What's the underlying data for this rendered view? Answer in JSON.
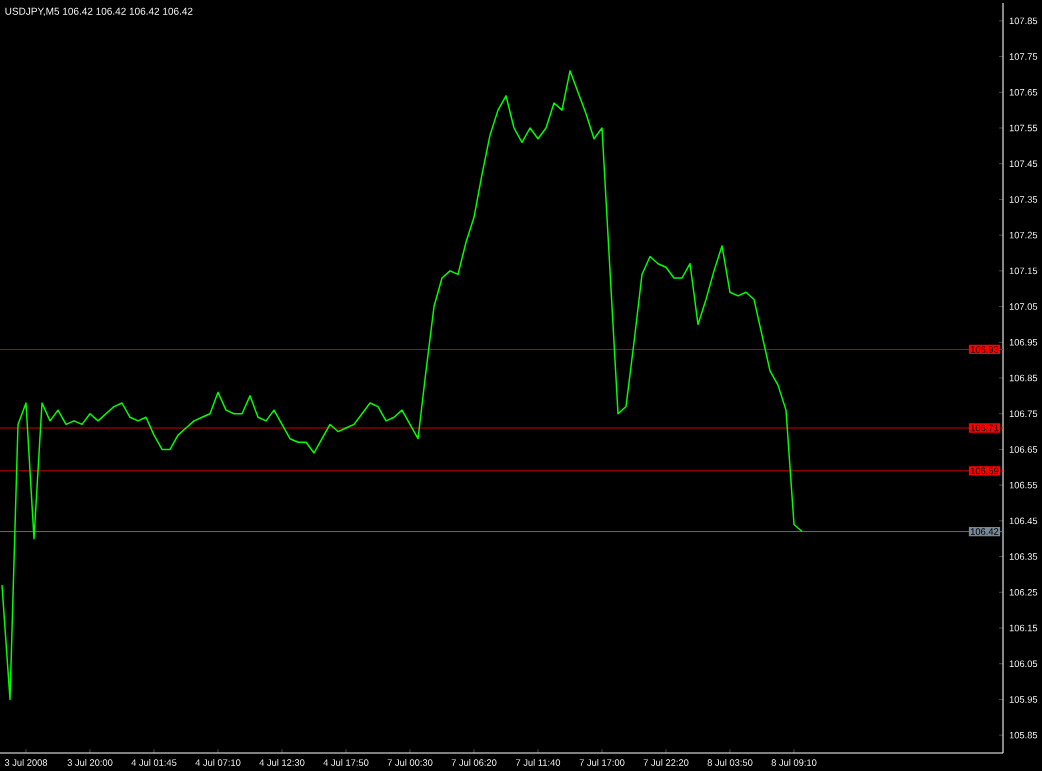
{
  "chart_data": {
    "type": "line",
    "title": "USDJPY,M5 106.42 106.42 106.42 106.42",
    "color": "#00ff00",
    "categories": [
      null,
      null,
      null,
      "3 Jul 2008",
      null,
      null,
      null,
      null,
      null,
      null,
      null,
      "3 Jul 20:00",
      null,
      null,
      null,
      null,
      null,
      null,
      null,
      "4 Jul 01:45",
      null,
      null,
      null,
      null,
      null,
      null,
      null,
      "4 Jul 07:10",
      null,
      null,
      null,
      null,
      null,
      null,
      null,
      "4 Jul 12:30",
      null,
      null,
      null,
      null,
      null,
      null,
      null,
      "4 Jul 17:50",
      null,
      null,
      null,
      null,
      null,
      null,
      null,
      "7 Jul 00:30",
      null,
      null,
      null,
      null,
      null,
      null,
      null,
      "7 Jul 06:20",
      null,
      null,
      null,
      null,
      null,
      null,
      null,
      "7 Jul 11:40",
      null,
      null,
      null,
      null,
      null,
      null,
      null,
      "7 Jul 17:00",
      null,
      null,
      null,
      null,
      null,
      null,
      null,
      "7 Jul 22:20",
      null,
      null,
      null,
      null,
      null,
      null,
      null,
      "8 Jul 03:50",
      null,
      null,
      null,
      null,
      null,
      null,
      null,
      "8 Jul 09:10",
      null
    ],
    "values": [
      106.27,
      105.95,
      106.72,
      106.78,
      106.4,
      106.78,
      106.73,
      106.76,
      106.72,
      106.73,
      106.72,
      106.75,
      106.73,
      106.75,
      106.77,
      106.78,
      106.74,
      106.73,
      106.74,
      106.69,
      106.65,
      106.65,
      106.69,
      106.71,
      106.73,
      106.74,
      106.75,
      106.81,
      106.76,
      106.75,
      106.75,
      106.8,
      106.74,
      106.73,
      106.76,
      106.72,
      106.68,
      106.67,
      106.67,
      106.64,
      106.68,
      106.72,
      106.7,
      106.71,
      106.72,
      106.75,
      106.78,
      106.77,
      106.73,
      106.74,
      106.76,
      106.72,
      106.68,
      106.87,
      107.05,
      107.13,
      107.15,
      107.14,
      107.23,
      107.3,
      107.42,
      107.53,
      107.6,
      107.64,
      107.55,
      107.51,
      107.55,
      107.52,
      107.55,
      107.62,
      107.6,
      107.71,
      107.65,
      107.59,
      107.52,
      107.55,
      107.15,
      106.75,
      106.77,
      106.95,
      107.14,
      107.19,
      107.17,
      107.16,
      107.13,
      107.13,
      107.17,
      107.0,
      107.07,
      107.15,
      107.22,
      107.09,
      107.08,
      107.09,
      107.07,
      106.97,
      106.87,
      106.83,
      106.76,
      106.44,
      106.42
    ],
    "ylim": [
      105.8,
      107.9
    ],
    "yticks": [
      105.85,
      105.95,
      106.05,
      106.15,
      106.25,
      106.35,
      106.45,
      106.55,
      106.65,
      106.75,
      106.85,
      106.95,
      107.05,
      107.15,
      107.25,
      107.35,
      107.45,
      107.55,
      107.65,
      107.75,
      107.85
    ],
    "ref_lines": [
      {
        "axis": "y",
        "value": 106.93,
        "label": "106.93",
        "color": "#ff0000"
      },
      {
        "axis": "y",
        "value": 106.71,
        "label": "106.71",
        "color": "#ff0000"
      },
      {
        "axis": "y",
        "value": 106.59,
        "label": "106.59",
        "color": "#ff0000"
      },
      {
        "axis": "y",
        "value": 106.42,
        "label": "106.42",
        "color": "#778899"
      }
    ]
  }
}
